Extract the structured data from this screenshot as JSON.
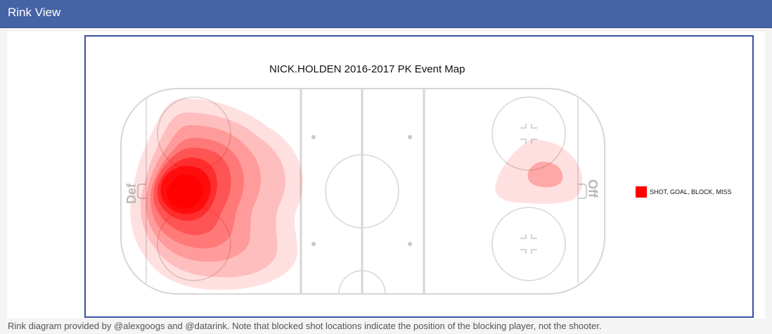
{
  "header": {
    "title": "Rink View"
  },
  "chart": {
    "title": "NICK.HOLDEN 2016-2017 PK Event Map",
    "legend": [
      {
        "label": "SHOT, GOAL, BLOCK, MISS",
        "color": "#ff0000"
      }
    ],
    "zones": {
      "defensive_label": "Def",
      "offensive_label": "Off"
    }
  },
  "chart_data": {
    "type": "heatmap",
    "title": "NICK.HOLDEN 2016-2017 PK Event Map",
    "series": [
      {
        "name": "SHOT, GOAL, BLOCK, MISS",
        "color": "#ff0000"
      }
    ],
    "colors": {
      "density": "#ff0000",
      "rink_lines": "#d0d0d0"
    }
  },
  "footer": {
    "note": "Rink diagram provided by @alexgoogs and @datarink. Note that blocked shot locations indicate the position of the blocking player, not the shooter."
  }
}
